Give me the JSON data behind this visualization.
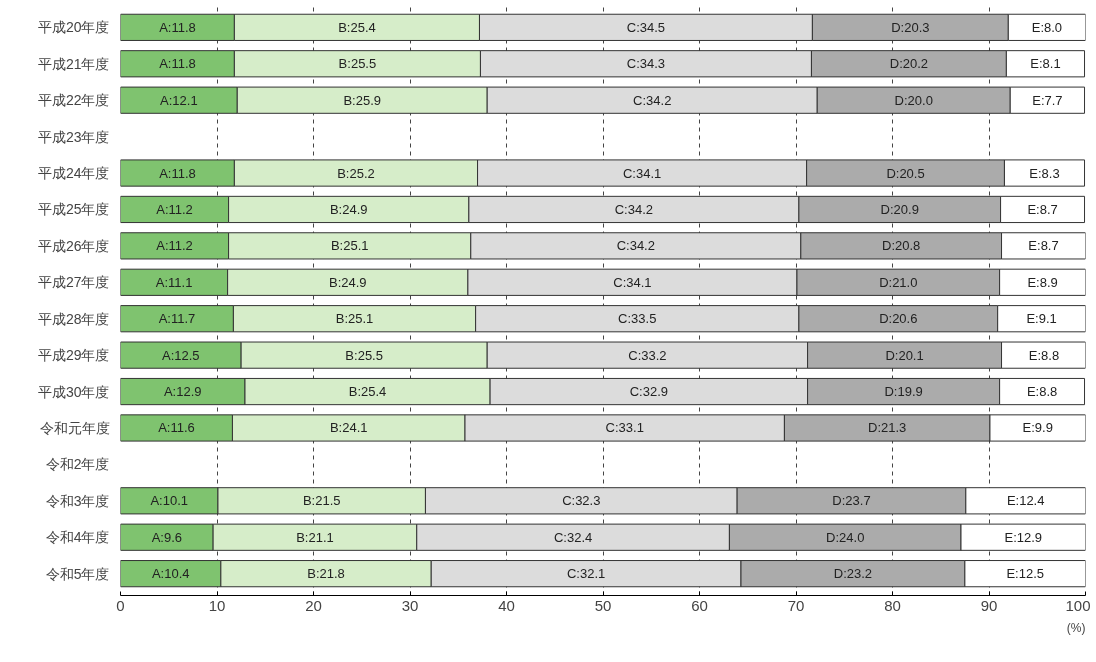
{
  "chart_data": {
    "type": "bar",
    "orientation": "horizontal",
    "stacked": true,
    "xlabel": "(%)",
    "categories": [
      "平成20年度",
      "平成21年度",
      "平成22年度",
      "平成23年度",
      "平成24年度",
      "平成25年度",
      "平成26年度",
      "平成27年度",
      "平成28年度",
      "平成29年度",
      "平成30年度",
      "令和元年度",
      "令和2年度",
      "令和3年度",
      "令和4年度",
      "令和5年度"
    ],
    "series": [
      {
        "color": "#7fc36f",
        "values": [
          11.8,
          11.8,
          12.1,
          null,
          11.8,
          11.2,
          11.2,
          11.1,
          11.7,
          12.5,
          12.9,
          11.6,
          null,
          10.1,
          9.6,
          10.4
        ],
        "value_labels": [
          "A:11.8",
          "A:11.8",
          "A:12.1",
          null,
          "A:11.8",
          "A:11.2",
          "A:11.2",
          "A:11.1",
          "A:11.7",
          "A:12.5",
          "A:12.9",
          "A:11.6",
          null,
          "A:10.1",
          "A:9.6",
          "A:10.4"
        ]
      },
      {
        "color": "#d6edc9",
        "values": [
          25.4,
          25.5,
          25.9,
          null,
          25.2,
          24.9,
          25.1,
          24.9,
          25.1,
          25.5,
          25.4,
          24.1,
          null,
          21.5,
          21.1,
          21.8
        ],
        "value_labels": [
          "B:25.4",
          "B:25.5",
          "B:25.9",
          null,
          "B:25.2",
          "B:24.9",
          "B:25.1",
          "B:24.9",
          "B:25.1",
          "B:25.5",
          "B:25.4",
          "B:24.1",
          null,
          "B:21.5",
          "B:21.1",
          "B:21.8"
        ]
      },
      {
        "color": "#dcdcdc",
        "values": [
          34.5,
          34.3,
          34.2,
          null,
          34.1,
          34.2,
          34.2,
          34.1,
          33.5,
          33.2,
          32.9,
          33.1,
          null,
          32.3,
          32.4,
          32.1
        ],
        "value_labels": [
          "C:34.5",
          "C:34.3",
          "C:34.2",
          null,
          "C:34.1",
          "C:34.2",
          "C:34.2",
          "C:34.1",
          "C:33.5",
          "C:33.2",
          "C:32.9",
          "C:33.1",
          null,
          "C:32.3",
          "C:32.4",
          "C:32.1"
        ]
      },
      {
        "color": "#ababab",
        "values": [
          20.3,
          20.2,
          20.0,
          null,
          20.5,
          20.9,
          20.8,
          21.0,
          20.6,
          20.1,
          19.9,
          21.3,
          null,
          23.7,
          24.0,
          23.2
        ],
        "value_labels": [
          "D:20.3",
          "D:20.2",
          "D:20.0",
          null,
          "D:20.5",
          "D:20.9",
          "D:20.8",
          "D:21.0",
          "D:20.6",
          "D:20.1",
          "D:19.9",
          "D:21.3",
          null,
          "D:23.7",
          "D:24.0",
          "D:23.2"
        ]
      },
      {
        "color": "#ffffff",
        "values": [
          8.0,
          8.1,
          7.7,
          null,
          8.3,
          8.7,
          8.7,
          8.9,
          9.1,
          8.8,
          8.8,
          9.9,
          null,
          12.4,
          12.9,
          12.5
        ],
        "value_labels": [
          "E:8.0",
          "E:8.1",
          "E:7.7",
          null,
          "E:8.3",
          "E:8.7",
          "E:8.7",
          "E:8.9",
          "E:9.1",
          "E:8.8",
          "E:8.8",
          "E:9.9",
          null,
          "E:12.4",
          "E:12.9",
          "E:12.5"
        ]
      }
    ],
    "xlim": [
      0,
      100
    ],
    "xticks": [
      0,
      10,
      20,
      30,
      40,
      50,
      60,
      70,
      80,
      90,
      100
    ],
    "grid": "x"
  }
}
